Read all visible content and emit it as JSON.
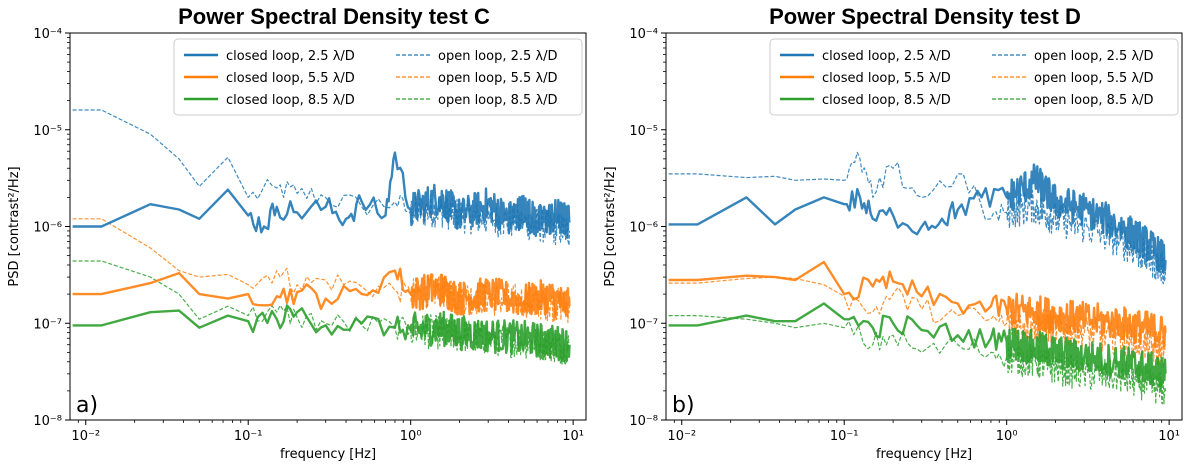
{
  "chart_data": [
    {
      "type": "line",
      "panel_label": "a)",
      "title": "Power Spectral Density test C",
      "xlabel": "frequency [Hz]",
      "ylabel": "PSD [contrast²/Hz]",
      "xscale": "log",
      "yscale": "log",
      "xlim": [
        0.008,
        12
      ],
      "ylim": [
        1e-08,
        0.0001
      ],
      "xticks": [
        "10⁻²",
        "10⁻¹",
        "10⁰",
        "10¹"
      ],
      "yticks": [
        "10⁻⁸",
        "10⁻⁷",
        "10⁻⁶",
        "10⁻⁵",
        "10⁻⁴"
      ],
      "legend_position": "top-right",
      "series": [
        {
          "name": "closed loop, 2.5 λ/D",
          "style": "solid",
          "color": "#1f77b4",
          "x": [
            0.0083,
            0.0125,
            0.025,
            0.0375,
            0.05,
            0.075,
            0.1,
            0.125,
            0.15,
            0.2,
            0.3,
            0.4,
            0.5,
            0.7,
            0.8,
            1,
            1.5,
            2,
            3,
            4,
            5,
            6,
            8,
            9.5
          ],
          "y": [
            1e-06,
            1e-06,
            1.7e-06,
            1.5e-06,
            1.2e-06,
            2.4e-06,
            1.3e-06,
            1e-06,
            1.6e-06,
            1.4e-06,
            1.6e-06,
            1.2e-06,
            1.8e-06,
            1.3e-06,
            5.8e-06,
            1.5e-06,
            2e-06,
            1.3e-06,
            1.7e-06,
            1.2e-06,
            1.5e-06,
            1.1e-06,
            1.3e-06,
            1.1e-06
          ]
        },
        {
          "name": "closed loop, 5.5 λ/D",
          "style": "solid",
          "color": "#ff7f0e",
          "x": [
            0.0083,
            0.0125,
            0.025,
            0.0375,
            0.05,
            0.075,
            0.1,
            0.15,
            0.2,
            0.3,
            0.5,
            0.8,
            1,
            1.5,
            2,
            3,
            5,
            7,
            9.5
          ],
          "y": [
            2e-07,
            2e-07,
            2.6e-07,
            3.3e-07,
            2e-07,
            1.8e-07,
            2e-07,
            1.9e-07,
            2.1e-07,
            1.8e-07,
            2e-07,
            3.5e-07,
            2e-07,
            2.3e-07,
            1.8e-07,
            2e-07,
            1.7e-07,
            1.9e-07,
            1.5e-07
          ]
        },
        {
          "name": "closed loop, 8.5 λ/D",
          "style": "solid",
          "color": "#2ca02c",
          "x": [
            0.0083,
            0.0125,
            0.025,
            0.0375,
            0.05,
            0.075,
            0.1,
            0.15,
            0.2,
            0.3,
            0.5,
            0.8,
            1,
            1.5,
            2,
            3,
            5,
            7,
            9.5
          ],
          "y": [
            9.5e-08,
            9.5e-08,
            1.3e-07,
            1.35e-07,
            9e-08,
            1.2e-07,
            1.05e-07,
            1.1e-07,
            1.3e-07,
            9.5e-08,
            1e-07,
            9e-08,
            8.5e-08,
            9e-08,
            8e-08,
            7.5e-08,
            7e-08,
            6.5e-08,
            6e-08
          ]
        },
        {
          "name": "open loop, 2.5 λ/D",
          "style": "dashed",
          "color": "#1f77b4",
          "x": [
            0.0083,
            0.0125,
            0.025,
            0.0375,
            0.05,
            0.075,
            0.1,
            0.15,
            0.2,
            0.3,
            0.5,
            0.8,
            1,
            1.5,
            2,
            3,
            5,
            7,
            9.5
          ],
          "y": [
            1.6e-05,
            1.6e-05,
            9e-06,
            5e-06,
            2.6e-06,
            5.2e-06,
            2e-06,
            2.5e-06,
            2.2e-06,
            2e-06,
            1.6e-06,
            1.8e-06,
            1.4e-06,
            1.5e-06,
            1.3e-06,
            1.2e-06,
            1.1e-06,
            1e-06,
            9e-07
          ]
        },
        {
          "name": "open loop, 5.5 λ/D",
          "style": "dashed",
          "color": "#ff7f0e",
          "x": [
            0.0083,
            0.0125,
            0.025,
            0.0375,
            0.05,
            0.075,
            0.1,
            0.15,
            0.2,
            0.3,
            0.5,
            0.8,
            1,
            1.5,
            2,
            3,
            5,
            7,
            9.5
          ],
          "y": [
            1.2e-06,
            1.2e-06,
            6e-07,
            3.5e-07,
            3e-07,
            3.2e-07,
            2.5e-07,
            3.5e-07,
            2.5e-07,
            2.8e-07,
            2.4e-07,
            2.2e-07,
            2e-07,
            2.2e-07,
            1.9e-07,
            1.8e-07,
            1.7e-07,
            1.6e-07,
            1.5e-07
          ]
        },
        {
          "name": "open loop, 8.5 λ/D",
          "style": "dashed",
          "color": "#2ca02c",
          "x": [
            0.0083,
            0.0125,
            0.025,
            0.0375,
            0.05,
            0.075,
            0.1,
            0.15,
            0.2,
            0.3,
            0.5,
            0.8,
            1,
            1.5,
            2,
            3,
            5,
            7,
            9.5
          ],
          "y": [
            4.4e-07,
            4.4e-07,
            3e-07,
            2e-07,
            1.1e-07,
            1.5e-07,
            1.2e-07,
            1.3e-07,
            1.15e-07,
            1e-07,
            9.5e-08,
            9e-08,
            8.5e-08,
            8e-08,
            7.5e-08,
            7e-08,
            6.5e-08,
            6e-08,
            5.5e-08
          ]
        }
      ]
    },
    {
      "type": "line",
      "panel_label": "b)",
      "title": "Power Spectral Density test D",
      "xlabel": "frequency [Hz]",
      "ylabel": "PSD [contrast²/Hz]",
      "xscale": "log",
      "yscale": "log",
      "xlim": [
        0.008,
        12
      ],
      "ylim": [
        1e-08,
        0.0001
      ],
      "xticks": [
        "10⁻²",
        "10⁻¹",
        "10⁰",
        "10¹"
      ],
      "yticks": [
        "10⁻⁸",
        "10⁻⁷",
        "10⁻⁶",
        "10⁻⁵",
        "10⁻⁴"
      ],
      "legend_position": "top-right",
      "series": [
        {
          "name": "closed loop, 2.5 λ/D",
          "style": "solid",
          "color": "#1f77b4",
          "x": [
            0.0083,
            0.0125,
            0.025,
            0.0375,
            0.05,
            0.075,
            0.1,
            0.125,
            0.15,
            0.2,
            0.3,
            0.4,
            0.5,
            0.7,
            1,
            1.5,
            2,
            3,
            5,
            7,
            9.5
          ],
          "y": [
            1.05e-06,
            1.05e-06,
            2e-06,
            1.05e-06,
            1.5e-06,
            2e-06,
            1.7e-06,
            2e-06,
            1.2e-06,
            1.3e-06,
            1e-06,
            1.2e-06,
            1.5e-06,
            2e-06,
            2e-06,
            3e-06,
            1.8e-06,
            1.5e-06,
            1e-06,
            7e-07,
            4.5e-07
          ]
        },
        {
          "name": "closed loop, 5.5 λ/D",
          "style": "solid",
          "color": "#ff7f0e",
          "x": [
            0.0083,
            0.0125,
            0.025,
            0.0375,
            0.05,
            0.075,
            0.1,
            0.15,
            0.2,
            0.3,
            0.5,
            0.8,
            1,
            1.5,
            2,
            3,
            5,
            7,
            9.5
          ],
          "y": [
            2.8e-07,
            2.8e-07,
            3.1e-07,
            3e-07,
            2.8e-07,
            4.3e-07,
            2e-07,
            2.4e-07,
            2.7e-07,
            1.9e-07,
            1.6e-07,
            1.5e-07,
            1.4e-07,
            1.3e-07,
            1.2e-07,
            1.1e-07,
            1e-07,
            9e-08,
            8e-08
          ]
        },
        {
          "name": "closed loop, 8.5 λ/D",
          "style": "solid",
          "color": "#2ca02c",
          "x": [
            0.0083,
            0.0125,
            0.025,
            0.0375,
            0.05,
            0.075,
            0.1,
            0.15,
            0.2,
            0.3,
            0.5,
            0.8,
            1,
            1.5,
            2,
            3,
            5,
            7,
            9.5
          ],
          "y": [
            9.5e-08,
            9.5e-08,
            1.2e-07,
            1.05e-07,
            1.05e-07,
            1.6e-07,
            1.1e-07,
            9e-08,
            1e-07,
            8.5e-08,
            7.5e-08,
            7e-08,
            6.5e-08,
            5.5e-08,
            5e-08,
            4.5e-08,
            4e-08,
            3.5e-08,
            3e-08
          ]
        },
        {
          "name": "open loop, 2.5 λ/D",
          "style": "dashed",
          "color": "#1f77b4",
          "x": [
            0.0083,
            0.0125,
            0.025,
            0.0375,
            0.05,
            0.075,
            0.1,
            0.125,
            0.15,
            0.2,
            0.3,
            0.5,
            0.8,
            1,
            1.5,
            2,
            3,
            5,
            7,
            9.5
          ],
          "y": [
            3.5e-06,
            3.5e-06,
            3.2e-06,
            3.3e-06,
            3e-06,
            3.1e-06,
            3e-06,
            5e-06,
            2e-06,
            4e-06,
            2e-06,
            3.5e-06,
            1.2e-06,
            1.4e-06,
            1.6e-06,
            1.2e-06,
            1e-06,
            7e-07,
            5e-07,
            3.5e-07
          ]
        },
        {
          "name": "open loop, 5.5 λ/D",
          "style": "dashed",
          "color": "#ff7f0e",
          "x": [
            0.0083,
            0.0125,
            0.025,
            0.0375,
            0.05,
            0.075,
            0.1,
            0.15,
            0.2,
            0.3,
            0.5,
            0.8,
            1,
            1.5,
            2,
            3,
            5,
            7,
            9.5
          ],
          "y": [
            2.6e-07,
            2.6e-07,
            2.9e-07,
            3e-07,
            2.9e-07,
            2.5e-07,
            1.9e-07,
            1.3e-07,
            2e-07,
            1.4e-07,
            1.2e-07,
            1.1e-07,
            1e-07,
            9.5e-08,
            9e-08,
            8e-08,
            7e-08,
            6e-08,
            5e-08
          ]
        },
        {
          "name": "open loop, 8.5 λ/D",
          "style": "dashed",
          "color": "#2ca02c",
          "x": [
            0.0083,
            0.0125,
            0.025,
            0.0375,
            0.05,
            0.075,
            0.1,
            0.15,
            0.2,
            0.3,
            0.5,
            0.8,
            1,
            1.5,
            2,
            3,
            5,
            7,
            9.5
          ],
          "y": [
            1.2e-07,
            1.2e-07,
            1.1e-07,
            1e-07,
            9e-08,
            1e-07,
            9e-08,
            6e-08,
            7.5e-08,
            5e-08,
            6e-08,
            5e-08,
            4.5e-08,
            4e-08,
            3.5e-08,
            3e-08,
            2.8e-08,
            2.4e-08,
            2e-08
          ]
        }
      ]
    }
  ]
}
